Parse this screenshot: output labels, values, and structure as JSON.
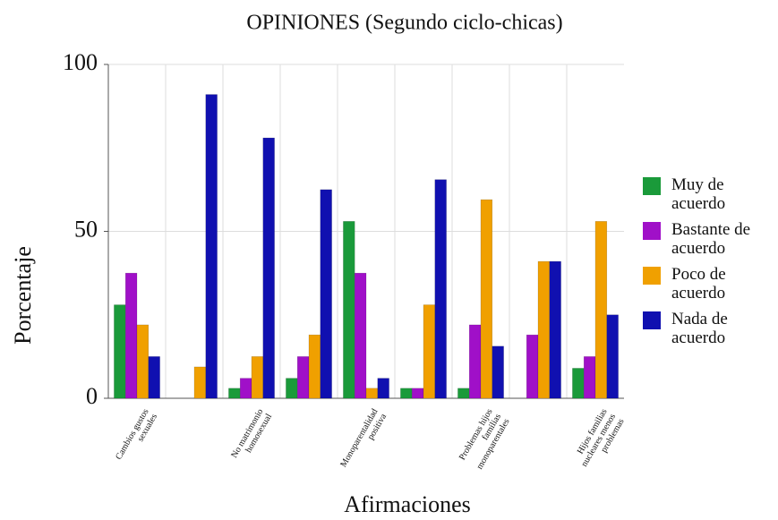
{
  "chart_data": {
    "type": "bar",
    "title": "OPINIONES (Segundo ciclo-chicas)",
    "x_label": "Afirmaciones",
    "y_label": "Porcentaje",
    "categories": [
      "Cambios gustos sexuales",
      null,
      "No matrimonio homosexual",
      null,
      "Monoparentalidad positiva",
      null,
      "Problemas hijos familias monoparentales",
      null,
      "Hijos familias nucleares menos problemas"
    ],
    "series": [
      {
        "name": "Muy de acuerdo",
        "color": "#1a9a3a",
        "values": [
          28,
          0,
          3,
          6,
          53,
          3,
          3,
          0,
          9
        ]
      },
      {
        "name": "Bastante de acuerdo",
        "color": "#a010c8",
        "values": [
          37.5,
          0,
          6,
          12.5,
          37.5,
          3,
          22,
          19,
          12.5
        ]
      },
      {
        "name": "Poco de acuerdo",
        "color": "#f0a000",
        "values": [
          22,
          9.4,
          12.5,
          19,
          3,
          28,
          59.5,
          41,
          53
        ]
      },
      {
        "name": "Nada de acuerdo",
        "color": "#1010b0",
        "values": [
          12.5,
          91,
          78,
          62.5,
          6,
          65.5,
          15.6,
          41,
          25
        ]
      }
    ],
    "ylim": [
      0,
      100
    ],
    "yticks": [
      0,
      50,
      100
    ],
    "grid": true,
    "legend": "right"
  }
}
